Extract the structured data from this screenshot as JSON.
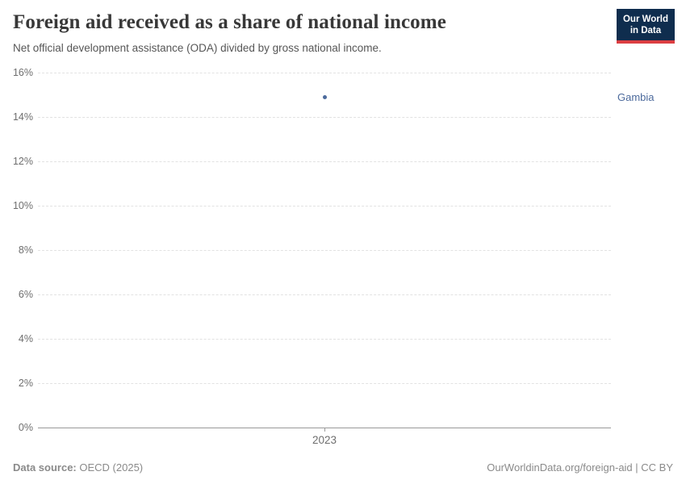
{
  "header": {
    "title": "Foreign aid received as a share of national income",
    "subtitle": "Net official development assistance (ODA) divided by gross national income.",
    "logo": {
      "line1": "Our World",
      "line2": "in Data"
    }
  },
  "chart_data": {
    "type": "scatter",
    "title": "Foreign aid received as a share of national income",
    "series": [
      {
        "name": "Gambia",
        "x": [
          2023
        ],
        "values": [
          14.9
        ],
        "color": "#4c6a9c"
      }
    ],
    "xticks": [
      2023
    ],
    "yticks": [
      0,
      2,
      4,
      6,
      8,
      10,
      12,
      14,
      16
    ],
    "ylim": [
      0,
      16
    ],
    "ytick_suffix": "%",
    "grid": true,
    "legend_position": "right"
  },
  "footer": {
    "source_label": "Data source:",
    "source_value": "OECD (2025)",
    "link": "OurWorldinData.org/foreign-aid | CC BY"
  },
  "colors": {
    "accent_blue": "#4c6a9c",
    "logo_navy": "#0f2d4e",
    "logo_red": "#dc3e42",
    "gridline": "#e2e2e2",
    "axis_line": "#9a9a9a",
    "title_text": "#383838",
    "muted_text": "#8a8a8a"
  }
}
